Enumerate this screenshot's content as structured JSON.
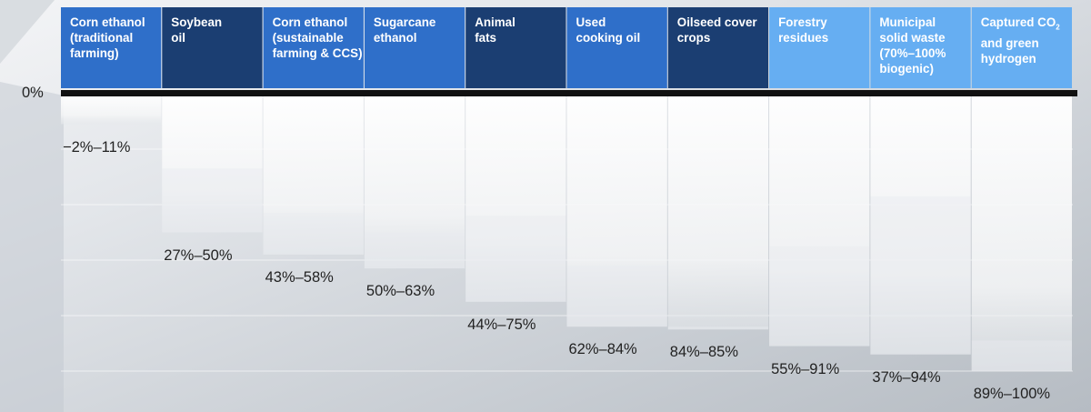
{
  "chart_data": {
    "type": "bar",
    "zero_label": "0%",
    "categories": [
      "Corn ethanol\n(traditional\nfarming)",
      "Soybean\noil",
      "Corn ethanol\n(sustainable\nfarming & CCS)",
      "Sugarcane\nethanol",
      "Animal\nfats",
      "Used\ncooking oil",
      "Oilseed cover\ncrops",
      "Forestry\nresidues",
      "Municipal\nsolid waste\n(70%–100%\nbiogenic)",
      "Captured CO₂\nand green\nhydrogen"
    ],
    "ranges": [
      {
        "low": -2,
        "high": 11,
        "label": "−2%–11%"
      },
      {
        "low": 27,
        "high": 50,
        "label": "27%–50%"
      },
      {
        "low": 43,
        "high": 58,
        "label": "43%–58%"
      },
      {
        "low": 50,
        "high": 63,
        "label": "50%–63%"
      },
      {
        "low": 44,
        "high": 75,
        "label": "44%–75%"
      },
      {
        "low": 62,
        "high": 84,
        "label": "62%–84%"
      },
      {
        "low": 84,
        "high": 85,
        "label": "84%–85%"
      },
      {
        "low": 55,
        "high": 91,
        "label": "55%–91%"
      },
      {
        "low": 37,
        "high": 94,
        "label": "37%–94%"
      },
      {
        "low": 89,
        "high": 100,
        "label": "89%–100%"
      }
    ],
    "colors": {
      "header_dark": "#1b3e72",
      "header_mid": "#2f6fc9",
      "header_light": "#66aef2",
      "baseline": "#111111"
    },
    "header_shades": [
      "mid",
      "dark",
      "mid",
      "mid",
      "dark",
      "mid",
      "dark",
      "light",
      "light",
      "light"
    ],
    "ylim": [
      -2,
      100
    ],
    "grid": true
  }
}
